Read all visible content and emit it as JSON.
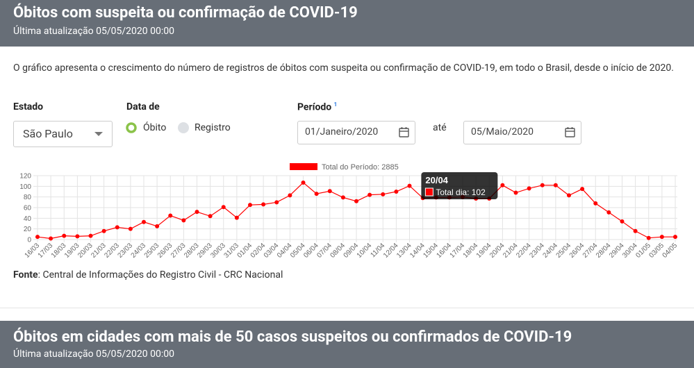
{
  "header": {
    "title": "Óbitos com suspeita ou confirmação de COVID-19",
    "subtitle": "Última atualização 05/05/2020 00:00"
  },
  "description": "O gráfico apresenta o crescimento do número de registros de óbitos com suspeita ou confirmação de COVID-19, em todo o Brasil, desde o início de 2020.",
  "filters": {
    "estado": {
      "label": "Estado",
      "value": "São Paulo"
    },
    "data_de": {
      "label": "Data de",
      "options": [
        "Óbito",
        "Registro"
      ]
    },
    "periodo": {
      "label": "Período",
      "note": "1",
      "from": "01/Janeiro/2020",
      "separator": "até",
      "to": "05/Maio/2020"
    }
  },
  "chart_data": {
    "type": "line",
    "categories": [
      "16/03",
      "17/03",
      "18/03",
      "19/03",
      "20/03",
      "21/03",
      "22/03",
      "23/03",
      "24/03",
      "25/03",
      "26/03",
      "27/03",
      "28/03",
      "29/03",
      "30/03",
      "31/03",
      "01/04",
      "02/04",
      "03/04",
      "04/04",
      "05/04",
      "06/04",
      "07/04",
      "08/04",
      "09/04",
      "10/04",
      "11/04",
      "12/04",
      "13/04",
      "14/04",
      "15/04",
      "16/04",
      "17/04",
      "18/04",
      "19/04",
      "20/04",
      "21/04",
      "22/04",
      "23/04",
      "24/04",
      "25/04",
      "26/04",
      "27/04",
      "28/04",
      "29/04",
      "30/04",
      "01/05",
      "03/05",
      "04/05"
    ],
    "series": [
      {
        "name": "Total do Período: 2885",
        "color": "#ff0000",
        "values": [
          5,
          2,
          7,
          6,
          7,
          16,
          23,
          20,
          33,
          25,
          45,
          36,
          52,
          44,
          61,
          41,
          65,
          66,
          70,
          83,
          107,
          86,
          91,
          79,
          72,
          84,
          85,
          90,
          101,
          78,
          79,
          79,
          80,
          77,
          77,
          102,
          88,
          96,
          102,
          102,
          83,
          95,
          68,
          51,
          34,
          16,
          3,
          5,
          5
        ]
      }
    ],
    "ylim": [
      0,
      120
    ],
    "yticks": [
      0,
      20,
      40,
      60,
      80,
      100,
      120
    ],
    "grid": true,
    "tooltip": {
      "title": "20/04",
      "text": "Total dia: 102"
    }
  },
  "source": {
    "label": "Fonte",
    "text": ": Central de Informações do Registro Civil - CRC Nacional"
  },
  "next_section": {
    "title": "Óbitos em cidades com mais de 50 casos suspeitos ou confirmados de COVID-19",
    "subtitle": "Última atualização 05/05/2020 00:00"
  }
}
